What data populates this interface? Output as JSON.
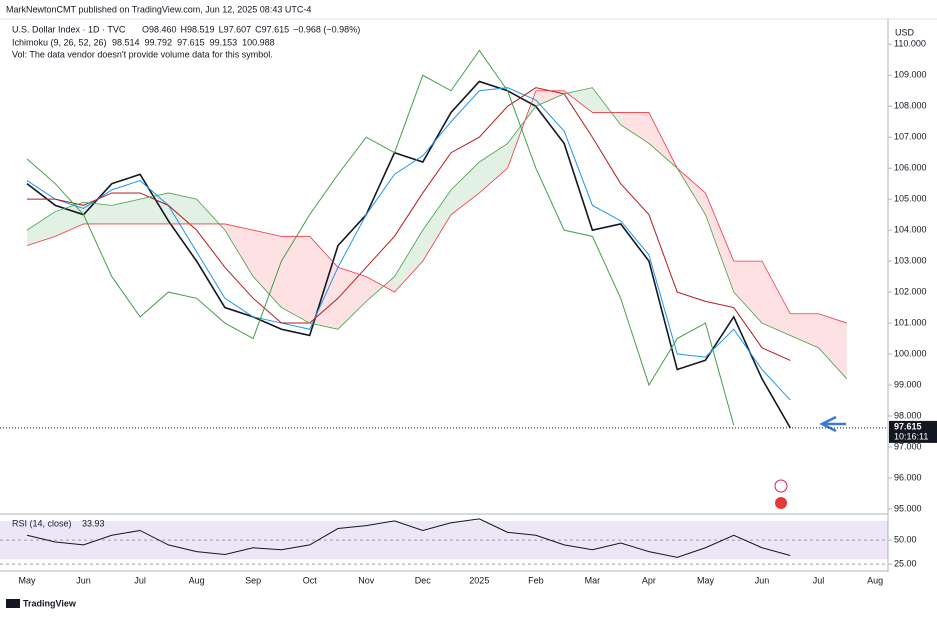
{
  "chart_data": [
    {
      "type": "line",
      "header": "MarkNewtonCMT published on TradingView.com, Jun 12, 2025 08:43 UTC-4",
      "title": "U.S. Dollar Index · 1D · TVC",
      "ohlc": [
        "O98.460",
        "H98.519",
        "L97.607",
        "C97.615",
        "−0.968 (−0.98%)"
      ],
      "indicator": "Ichimoku (9, 26, 52, 26)",
      "indicator_values": [
        98.514,
        99.792,
        97.615,
        99.153,
        100.988
      ],
      "indicator_colors": [
        "#2196f3",
        "#b71c1c",
        "#43a047",
        "#43a047",
        "#f23645"
      ],
      "note": "Vol: The data vendor doesn't provide volume data for this symbol.",
      "currency": "USD",
      "last_price": 97.615,
      "countdown": "10:16:11",
      "brand": "TradingView",
      "categories": [
        "May",
        null,
        "Jun",
        null,
        "Jul",
        null,
        "Aug",
        null,
        "Sep",
        null,
        "Oct",
        null,
        "Nov",
        null,
        "Dec",
        null,
        "2025",
        null,
        "Feb",
        null,
        "Mar",
        null,
        "Apr",
        null,
        "May",
        null,
        "Jun",
        null,
        "Jul",
        null,
        "Aug",
        null
      ],
      "ylim": [
        94.9,
        110.3
      ],
      "yticks": [
        {
          "value": 95,
          "label": "95.000"
        },
        {
          "value": 96,
          "label": "96.000"
        },
        {
          "value": 97,
          "label": "97.000"
        },
        {
          "value": 98,
          "label": "98.000"
        },
        {
          "value": 99,
          "label": "99.000"
        },
        {
          "value": 100,
          "label": "100.000"
        },
        {
          "value": 101,
          "label": "101.000"
        },
        {
          "value": 102,
          "label": "102.000"
        },
        {
          "value": 103,
          "label": "103.000"
        },
        {
          "value": 104,
          "label": "104.000"
        },
        {
          "value": 105,
          "label": "105.000"
        },
        {
          "value": 106,
          "label": "106.000"
        },
        {
          "value": 107,
          "label": "107.000"
        },
        {
          "value": 108,
          "label": "108.000"
        },
        {
          "value": 109,
          "label": "109.000"
        },
        {
          "value": 110,
          "label": "110.000"
        }
      ],
      "series": [
        {
          "color": "#131722",
          "width": 1.6,
          "values": [
            105.5,
            104.8,
            104.5,
            105.5,
            105.8,
            104.3,
            103.0,
            101.5,
            101.2,
            100.8,
            100.6,
            103.5,
            104.5,
            106.5,
            106.2,
            107.8,
            108.8,
            108.5,
            108.0,
            106.8,
            104.0,
            104.2,
            103.0,
            99.5,
            99.8,
            101.2,
            99.2,
            97.615,
            null,
            null,
            null,
            null
          ]
        },
        {
          "color": "#2196f3",
          "width": 1,
          "values": [
            105.6,
            105.0,
            104.7,
            105.3,
            105.6,
            104.8,
            103.3,
            101.8,
            101.2,
            101.0,
            100.8,
            102.8,
            104.5,
            105.8,
            106.4,
            107.5,
            108.5,
            108.6,
            108.2,
            107.2,
            104.8,
            104.3,
            103.2,
            100.0,
            99.9,
            100.8,
            99.5,
            98.514,
            null,
            null,
            null,
            null
          ]
        },
        {
          "color": "#b71c1c",
          "width": 1,
          "values": [
            105.0,
            105.0,
            104.8,
            105.2,
            105.2,
            104.8,
            104.0,
            102.8,
            101.8,
            101.0,
            101.0,
            101.8,
            102.8,
            103.8,
            105.2,
            106.5,
            107.0,
            108.0,
            108.6,
            108.4,
            107.0,
            105.5,
            104.5,
            102.0,
            101.7,
            101.5,
            100.2,
            99.792,
            null,
            null,
            null,
            null
          ]
        },
        {
          "color": "#43a047",
          "width": 1,
          "values": [
            106.3,
            105.5,
            104.5,
            102.5,
            101.2,
            102.0,
            101.8,
            101.0,
            100.5,
            103.0,
            104.5,
            105.8,
            107.0,
            106.5,
            109.0,
            108.5,
            109.8,
            108.5,
            106.0,
            104.0,
            103.8,
            101.8,
            99.0,
            100.5,
            101.0,
            97.7,
            null,
            null,
            null,
            null,
            null,
            null
          ]
        },
        {
          "color": "#43a047",
          "width": 0.8,
          "cloud": true,
          "values": [
            104.0,
            104.6,
            104.9,
            104.8,
            105.0,
            105.2,
            105.0,
            104.0,
            102.5,
            101.5,
            101.0,
            100.8,
            101.7,
            102.5,
            104.0,
            105.3,
            106.2,
            106.8,
            108.0,
            108.4,
            108.6,
            107.4,
            106.8,
            106.0,
            104.5,
            102.0,
            101.0,
            100.6,
            100.2,
            99.2,
            null,
            null
          ]
        },
        {
          "color": "#f23645",
          "width": 0.8,
          "cloud": true,
          "values": [
            103.5,
            103.8,
            104.2,
            104.2,
            104.2,
            104.2,
            104.2,
            104.2,
            104.0,
            103.8,
            103.8,
            102.8,
            102.5,
            102.0,
            103.0,
            104.5,
            105.2,
            106.0,
            108.5,
            108.5,
            107.8,
            107.8,
            107.8,
            106.0,
            105.2,
            103.0,
            103.0,
            101.3,
            101.3,
            101.0,
            null,
            null
          ]
        }
      ]
    },
    {
      "type": "line",
      "title": "RSI (14, close)",
      "last": 33.93,
      "ylim": [
        22,
        74
      ],
      "yticks": [
        {
          "value": 25,
          "label": "25.00"
        },
        {
          "value": 50,
          "label": "50.00"
        }
      ],
      "band": [
        30,
        70
      ],
      "series": [
        {
          "color": "#131722",
          "width": 1,
          "values": [
            55,
            48,
            45,
            55,
            60,
            45,
            38,
            35,
            42,
            40,
            45,
            62,
            65,
            70,
            60,
            68,
            72,
            58,
            55,
            45,
            40,
            47,
            38,
            32,
            42,
            55,
            42,
            33.93,
            null,
            null,
            null,
            null
          ]
        }
      ]
    }
  ]
}
